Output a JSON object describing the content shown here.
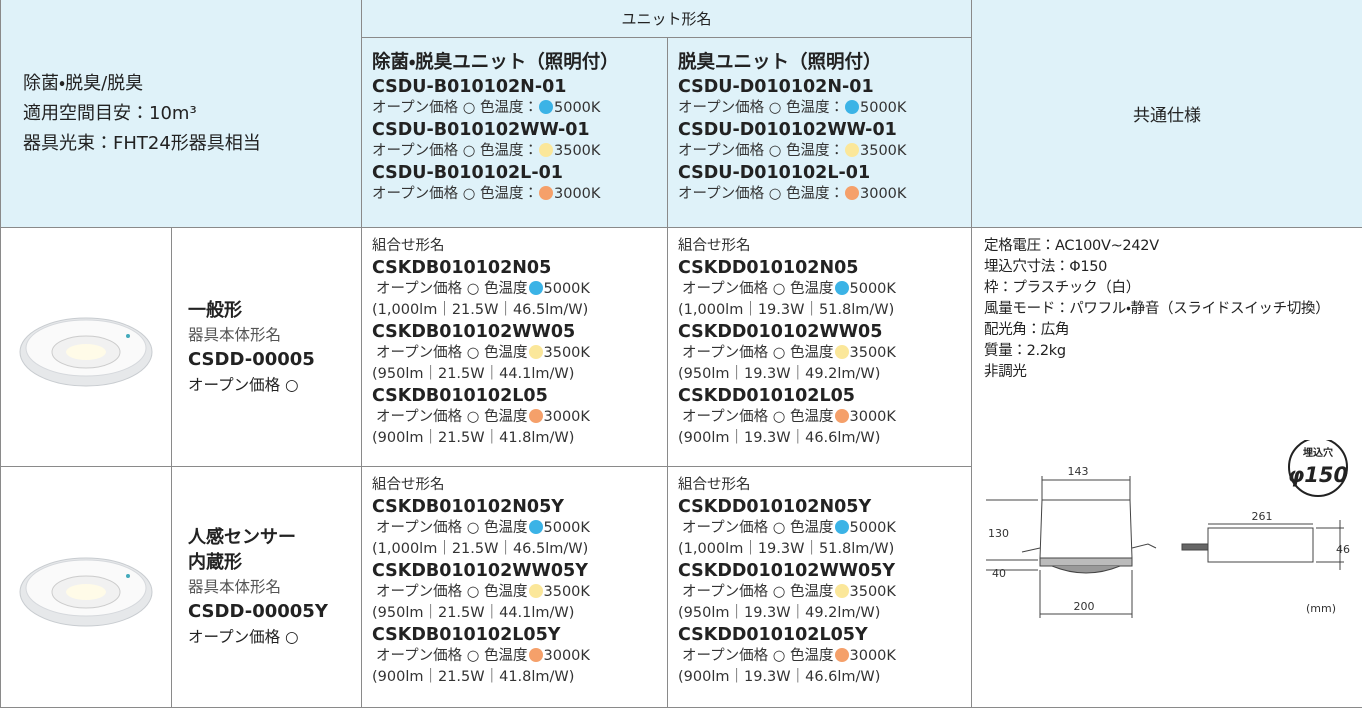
{
  "header": {
    "spec_lines": [
      "除菌・脱臭/脱臭",
      "適用空間目安：10m³",
      "器具光束：FHT24形器具相当"
    ],
    "unit_title": "ユニット形名",
    "common_title": "共通仕様",
    "units": [
      {
        "name": "除菌・脱臭ユニット（照明付）",
        "models": [
          {
            "code": "CSDU-B010102N-01",
            "price": "オープン価格 ○ 色温度：",
            "color": "#3bb3e6",
            "temp": "5000K"
          },
          {
            "code": "CSDU-B010102WW-01",
            "price": "オープン価格 ○ 色温度：",
            "color": "#fbe79a",
            "temp": "3500K"
          },
          {
            "code": "CSDU-B010102L-01",
            "price": "オープン価格 ○ 色温度：",
            "color": "#f5a06a",
            "temp": "3000K"
          }
        ]
      },
      {
        "name": "脱臭ユニット（照明付）",
        "models": [
          {
            "code": "CSDU-D010102N-01",
            "price": "オープン価格 ○ 色温度：",
            "color": "#3bb3e6",
            "temp": "5000K"
          },
          {
            "code": "CSDU-D010102WW-01",
            "price": "オープン価格 ○ 色温度：",
            "color": "#fbe79a",
            "temp": "3500K"
          },
          {
            "code": "CSDU-D010102L-01",
            "price": "オープン価格 ○ 色温度：",
            "color": "#f5a06a",
            "temp": "3000K"
          }
        ]
      }
    ]
  },
  "rows": [
    {
      "name_lines": [
        "一般形"
      ],
      "body_label": "器具本体形名",
      "body_code": "CSDD-00005",
      "price": "オープン価格 ○",
      "combos": [
        {
          "label": "組合せ形名",
          "items": [
            {
              "code": "CSKDB010102N05",
              "price": "オープン価格 ○ 色温度",
              "color": "#3bb3e6",
              "temp": "5000K",
              "specs": "(1,000lm｜21.5W｜46.5lm/W)"
            },
            {
              "code": "CSKDB010102WW05",
              "price": "オープン価格 ○ 色温度",
              "color": "#fbe79a",
              "temp": "3500K",
              "specs": "(950lm｜21.5W｜44.1lm/W)"
            },
            {
              "code": "CSKDB010102L05",
              "price": "オープン価格 ○ 色温度",
              "color": "#f5a06a",
              "temp": "3000K",
              "specs": "(900lm｜21.5W｜41.8lm/W)"
            }
          ]
        },
        {
          "label": "組合せ形名",
          "items": [
            {
              "code": "CSKDD010102N05",
              "price": "オープン価格 ○ 色温度",
              "color": "#3bb3e6",
              "temp": "5000K",
              "specs": "(1,000lm｜19.3W｜51.8lm/W)"
            },
            {
              "code": "CSKDD010102WW05",
              "price": "オープン価格 ○ 色温度",
              "color": "#fbe79a",
              "temp": "3500K",
              "specs": "(950lm｜19.3W｜49.2lm/W)"
            },
            {
              "code": "CSKDD010102L05",
              "price": "オープン価格 ○ 色温度",
              "color": "#f5a06a",
              "temp": "3000K",
              "specs": "(900lm｜19.3W｜46.6lm/W)"
            }
          ]
        }
      ]
    },
    {
      "name_lines": [
        "人感センサー",
        "内蔵形"
      ],
      "body_label": "器具本体形名",
      "body_code": "CSDD-00005Y",
      "price": "オープン価格 ○",
      "combos": [
        {
          "label": "組合せ形名",
          "items": [
            {
              "code": "CSKDB010102N05Y",
              "price": "オープン価格 ○ 色温度",
              "color": "#3bb3e6",
              "temp": "5000K",
              "specs": "(1,000lm｜21.5W｜46.5lm/W)"
            },
            {
              "code": "CSKDB010102WW05Y",
              "price": "オープン価格 ○ 色温度",
              "color": "#fbe79a",
              "temp": "3500K",
              "specs": "(950lm｜21.5W｜44.1lm/W)"
            },
            {
              "code": "CSKDB010102L05Y",
              "price": "オープン価格 ○ 色温度",
              "color": "#f5a06a",
              "temp": "3000K",
              "specs": "(900lm｜21.5W｜41.8lm/W)"
            }
          ]
        },
        {
          "label": "組合せ形名",
          "items": [
            {
              "code": "CSKDD010102N05Y",
              "price": "オープン価格 ○ 色温度",
              "color": "#3bb3e6",
              "temp": "5000K",
              "specs": "(1,000lm｜19.3W｜51.8lm/W)"
            },
            {
              "code": "CSKDD010102WW05Y",
              "price": "オープン価格 ○ 色温度",
              "color": "#fbe79a",
              "temp": "3500K",
              "specs": "(950lm｜19.3W｜49.2lm/W)"
            },
            {
              "code": "CSKDD010102L05Y",
              "price": "オープン価格 ○ 色温度",
              "color": "#f5a06a",
              "temp": "3000K",
              "specs": "(900lm｜19.3W｜46.6lm/W)"
            }
          ]
        }
      ]
    }
  ],
  "common_specs": {
    "lines": [
      "定格電圧：AC100V~242V",
      "埋込穴寸法：Φ150",
      "枠：プラスチック（白）",
      "風量モード：パワフル・静音（スライドスイッチ切換）",
      "配光角：広角",
      "質量：2.2kg",
      "非調光"
    ],
    "diagram": {
      "badge_label": "埋込穴",
      "badge_size": "φ150",
      "dim_top": "143",
      "dim_height": "130",
      "dim_flange": "40",
      "dim_bottom": "200",
      "dim_length": "261",
      "dim_depth": "46",
      "unit": "(mm)"
    }
  }
}
